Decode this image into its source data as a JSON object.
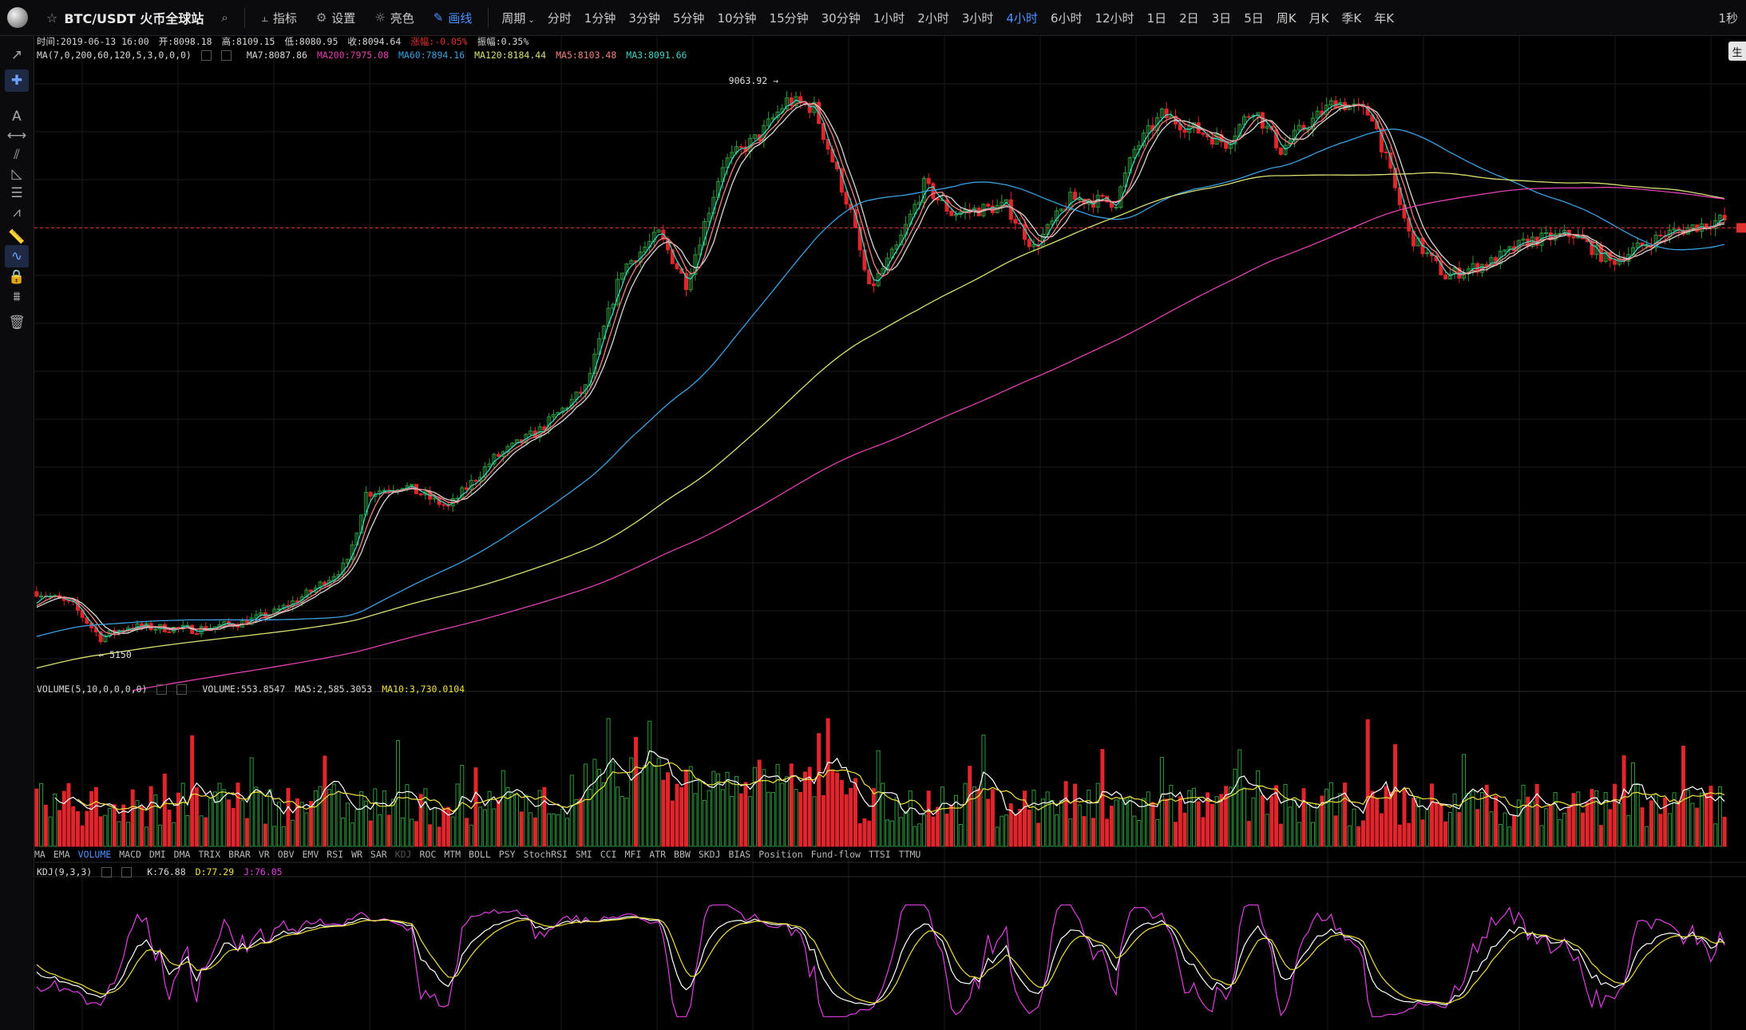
{
  "topbar": {
    "symbol": "BTC/USDT 火币全球站",
    "buttons": {
      "indicator": "指标",
      "settings": "设置",
      "theme": "亮色",
      "draw": "画线"
    },
    "period_label": "周期",
    "periods": [
      "分时",
      "1分钟",
      "3分钟",
      "5分钟",
      "10分钟",
      "15分钟",
      "30分钟",
      "1小时",
      "2小时",
      "3小时",
      "4小时",
      "6小时",
      "12小时",
      "1日",
      "2日",
      "3日",
      "5日",
      "周K",
      "月K",
      "季K",
      "年K"
    ],
    "active_period": "4小时",
    "right": "1秒"
  },
  "side_badge": "生",
  "ohlc_legend": {
    "time": "时间:2019-06-13 16:00",
    "open": "开:8098.18",
    "high": "高:8109.15",
    "low": "低:8080.95",
    "close": "收:8094.64",
    "change": "涨幅:-0.05%",
    "amplitude": "振幅:0.35%"
  },
  "ma_legend": {
    "label": "MA(7,0,200,60,120,5,3,0,0,0)",
    "items": [
      {
        "text": "MA7:8087.86",
        "color": "#d8d8d8"
      },
      {
        "text": "MA200:7975.08",
        "color": "#e040b0"
      },
      {
        "text": "MA60:7894.16",
        "color": "#3aa0e0"
      },
      {
        "text": "MA120:8184.44",
        "color": "#d8e070"
      },
      {
        "text": "MA5:8103.48",
        "color": "#f08080"
      },
      {
        "text": "MA3:8091.66",
        "color": "#40d0c0"
      }
    ]
  },
  "markers": {
    "high": "9063.92",
    "low": "5150"
  },
  "volume_legend": {
    "label": "VOLUME(5,10,0,0,0,0)",
    "volume": "VOLUME:553.8547",
    "ma5": "MA5:2,585.3053",
    "ma10": "MA10:3,730.0104",
    "ma5_color": "#ffffff",
    "ma10_color": "#f0e040"
  },
  "indicator_tabs": [
    "MA",
    "EMA",
    "VOLUME",
    "MACD",
    "DMI",
    "DMA",
    "TRIX",
    "BRAR",
    "VR",
    "OBV",
    "EMV",
    "RSI",
    "WR",
    "SAR",
    "KDJ",
    "ROC",
    "MTM",
    "BOLL",
    "PSY",
    "StochRSI",
    "SMI",
    "CCI",
    "MFI",
    "ATR",
    "BBW",
    "SKDJ",
    "BIAS",
    "Position",
    "Fund-flow",
    "TTSI",
    "TTMU"
  ],
  "active_tab": "VOLUME",
  "dim_tab": "KDJ",
  "kdj_legend": {
    "label": "KDJ(9,3,3)",
    "k": "K:76.88",
    "d": "D:77.29",
    "j": "J:76.05",
    "k_color": "#ffffff",
    "d_color": "#f0e040",
    "j_color": "#e040e0"
  },
  "colors": {
    "up": "#2e9a3e",
    "down": "#e0262c",
    "bg": "#000000",
    "grid": "#1c1c1c",
    "current_price": "#e03030"
  },
  "chart_data": {
    "type": "candlestick",
    "price_anchors": [
      [
        0,
        5500
      ],
      [
        8,
        5400
      ],
      [
        14,
        5170
      ],
      [
        20,
        5250
      ],
      [
        35,
        5230
      ],
      [
        45,
        5280
      ],
      [
        52,
        5350
      ],
      [
        60,
        5500
      ],
      [
        68,
        5700
      ],
      [
        72,
        6200
      ],
      [
        80,
        6260
      ],
      [
        90,
        6100
      ],
      [
        100,
        6450
      ],
      [
        110,
        6650
      ],
      [
        120,
        6950
      ],
      [
        128,
        7800
      ],
      [
        136,
        8050
      ],
      [
        142,
        7700
      ],
      [
        150,
        8550
      ],
      [
        158,
        8750
      ],
      [
        164,
        9000
      ],
      [
        170,
        8950
      ],
      [
        178,
        8200
      ],
      [
        182,
        7650
      ],
      [
        188,
        7950
      ],
      [
        194,
        8400
      ],
      [
        200,
        8200
      ],
      [
        212,
        8250
      ],
      [
        218,
        7950
      ],
      [
        226,
        8300
      ],
      [
        236,
        8280
      ],
      [
        240,
        8650
      ],
      [
        246,
        8900
      ],
      [
        260,
        8700
      ],
      [
        266,
        8950
      ],
      [
        272,
        8650
      ],
      [
        276,
        8780
      ],
      [
        284,
        9000
      ],
      [
        292,
        8900
      ],
      [
        300,
        8050
      ],
      [
        308,
        7750
      ],
      [
        318,
        7850
      ],
      [
        326,
        8000
      ],
      [
        336,
        8050
      ],
      [
        344,
        7850
      ],
      [
        356,
        8050
      ],
      [
        368,
        8150
      ]
    ],
    "price_range": [
      4850,
      9350
    ],
    "current_price": 8094.64,
    "ma_periods": {
      "MA3": 3,
      "MA7": 7,
      "MA60": 60,
      "MA120": 120,
      "MA200": 200
    },
    "candles": 370
  }
}
